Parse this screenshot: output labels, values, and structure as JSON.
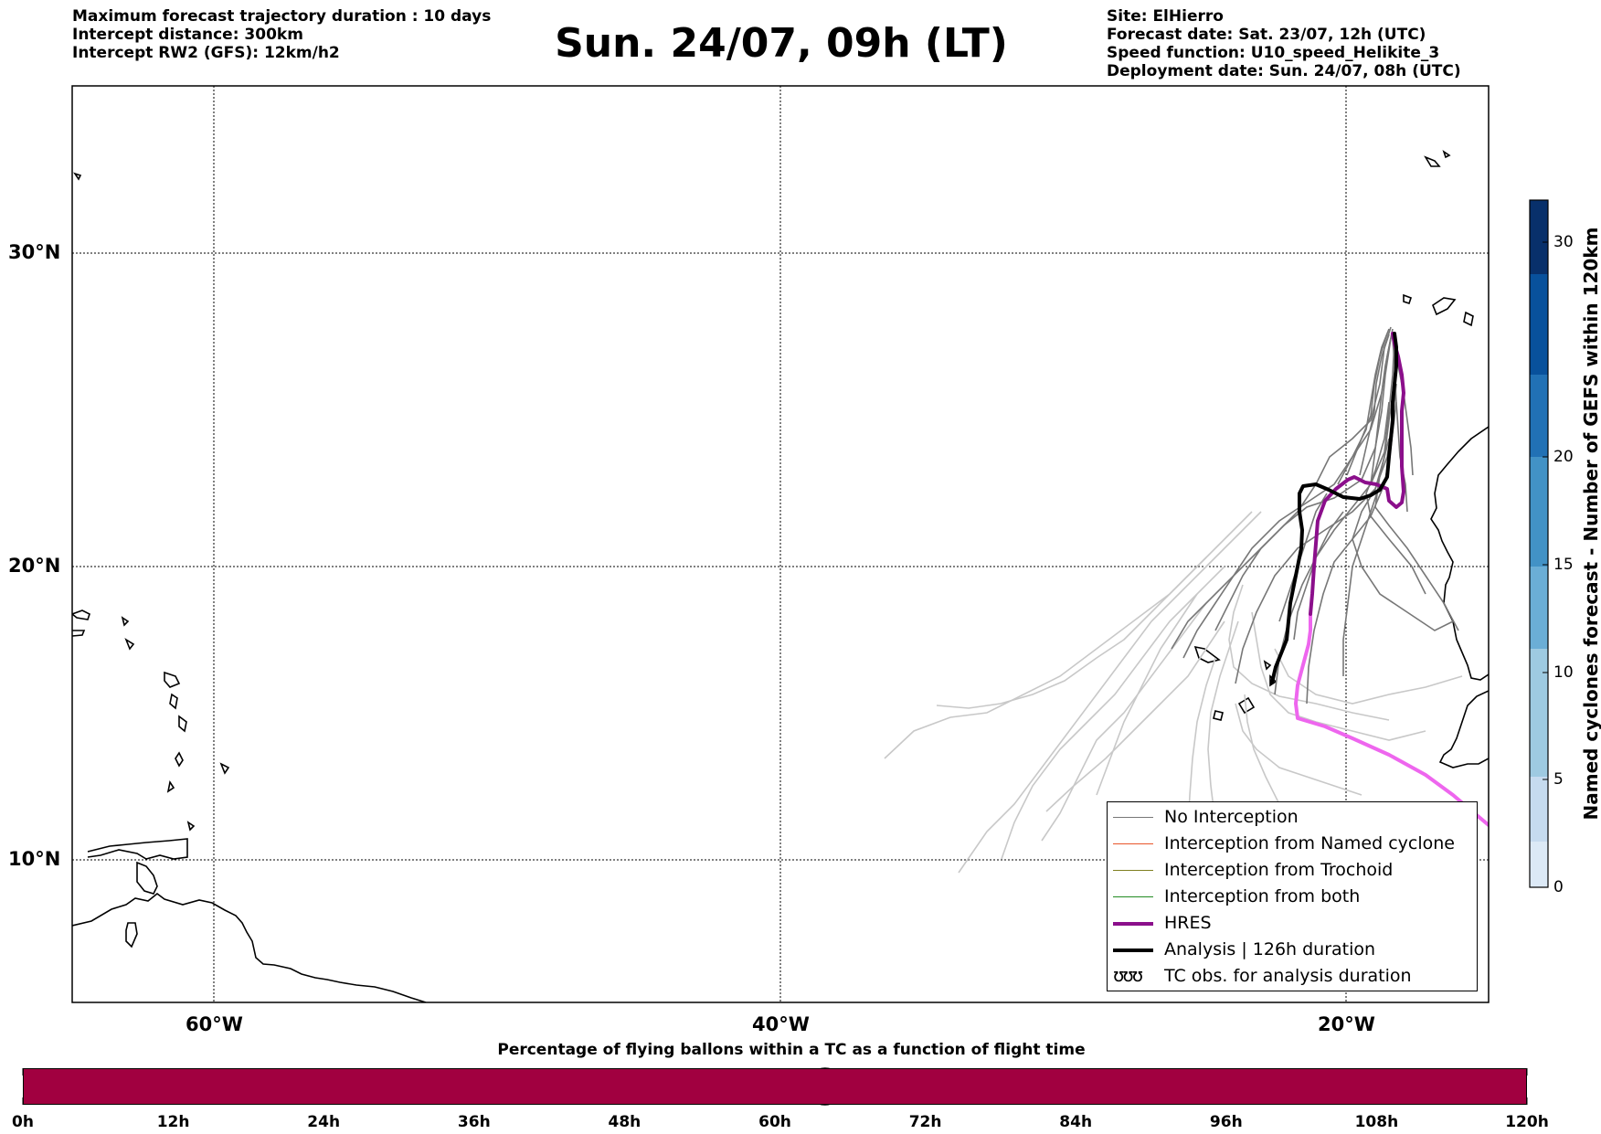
{
  "header": {
    "left_lines": [
      "Maximum forecast trajectory duration : 10 days",
      "Intercept distance: 300km",
      "Intercept RW2 (GFS):  12km/h2"
    ],
    "title": "Sun. 24/07, 09h (LT)",
    "right_lines": [
      "Site: ElHierro",
      "Forecast date: Sat. 23/07, 12h (UTC)",
      "Speed function: U10_speed_Helikite_3",
      "Deployment date: Sun. 24/07, 08h (UTC)"
    ]
  },
  "map": {
    "lat_labels": [
      "30°N",
      "20°N",
      "10°N"
    ],
    "lon_labels": [
      "60°W",
      "40°W",
      "20°W"
    ],
    "colors": {
      "no_interception": "#777777",
      "no_interception_light": "#c8c8c8",
      "named_cyclone": "#e8552a",
      "trochoid": "#808020",
      "both": "#228b22",
      "hres": "#8b0f8b",
      "hres_light": "#ee66ee",
      "analysis": "#000000"
    }
  },
  "legend": {
    "items": [
      {
        "label": "No Interception",
        "color": "#777777",
        "style": "thin"
      },
      {
        "label": "Interception from Named cyclone",
        "color": "#e8552a",
        "style": "thin"
      },
      {
        "label": "Interception from Trochoid",
        "color": "#808020",
        "style": "thin"
      },
      {
        "label": "Interception from both",
        "color": "#228b22",
        "style": "thin"
      },
      {
        "label": "HRES",
        "color": "#8b0f8b",
        "style": "thick"
      },
      {
        "label": "Analysis | 126h duration",
        "color": "#000000",
        "style": "thick"
      },
      {
        "label": "TC obs. for analysis duration",
        "glyph": "ʊʊʊ",
        "style": "glyph"
      }
    ]
  },
  "colorbar": {
    "title": "Named cyclones forecast - Number of GEFS within 120km",
    "ticks": [
      "30",
      "20",
      "15",
      "10",
      "5",
      "0"
    ],
    "colors": [
      "#dce9f6",
      "#c6dbef",
      "#9ecae1",
      "#6baed6",
      "#4292c6",
      "#2171b5",
      "#08519c",
      "#08306b"
    ]
  },
  "timebar": {
    "title": "Percentage of flying ballons within a TC as a function of flight time",
    "color": "#a10040",
    "labels": [
      "0h",
      "12h",
      "24h",
      "36h",
      "48h",
      "60h",
      "72h",
      "84h",
      "96h",
      "108h",
      "120h"
    ],
    "marker_hours": 64
  }
}
